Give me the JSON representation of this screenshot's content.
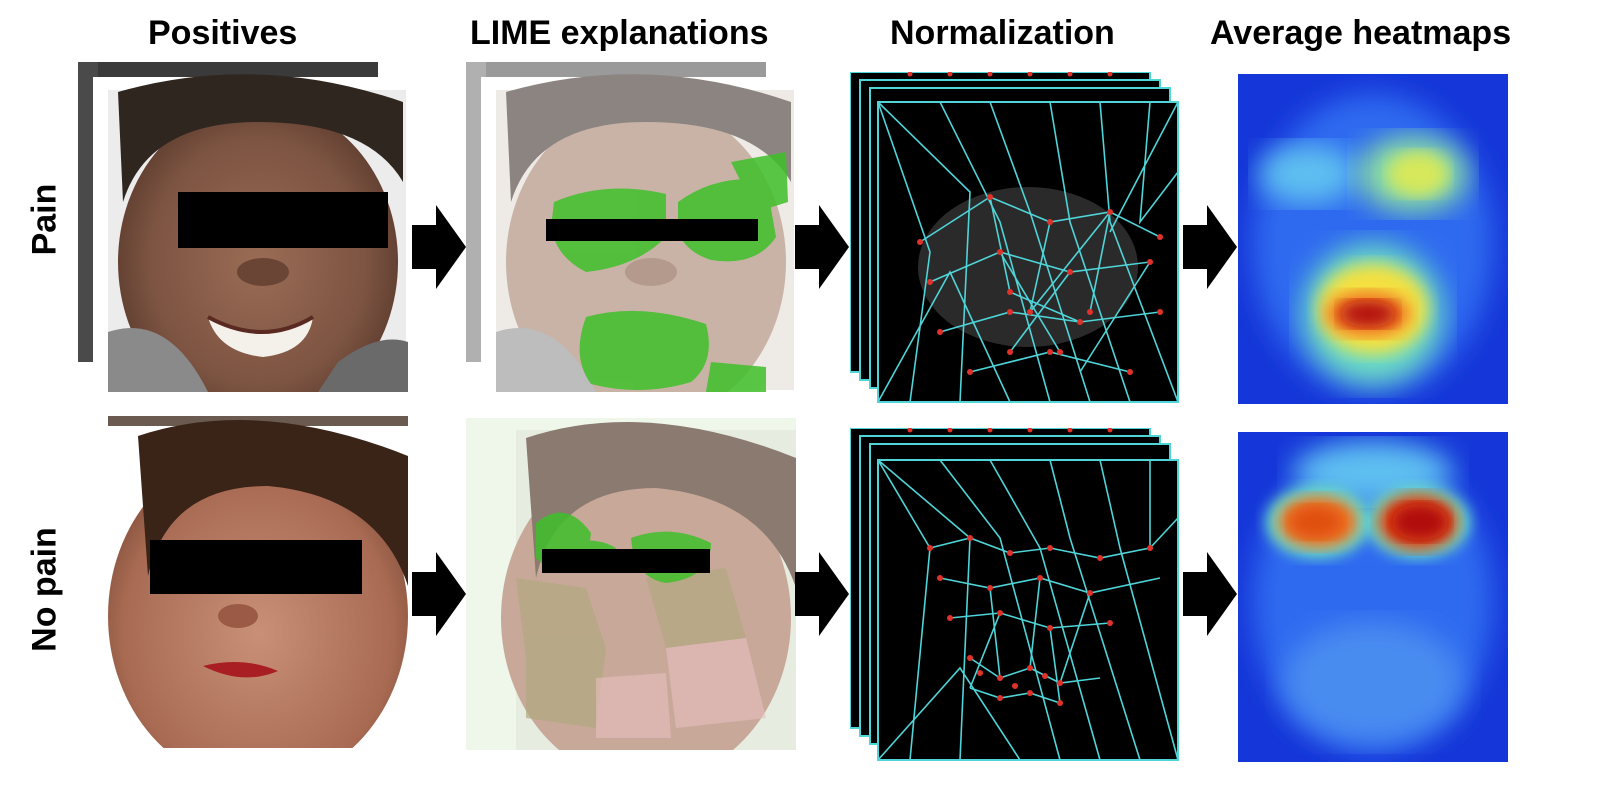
{
  "headers": {
    "positives": "Positives",
    "lime": "LIME explanations",
    "normalization": "Normalization",
    "average": "Average heatmaps"
  },
  "rows": {
    "pain": "Pain",
    "no_pain": "No pain"
  },
  "colors": {
    "arrow": "#000000",
    "mesh_line": "#4fd4d8",
    "mesh_node": "#e0322b",
    "lime_green": "#3fbf2a",
    "heat_low": "#1536d8",
    "heat_high": "#b0100c",
    "censor_bar": "#000000"
  }
}
